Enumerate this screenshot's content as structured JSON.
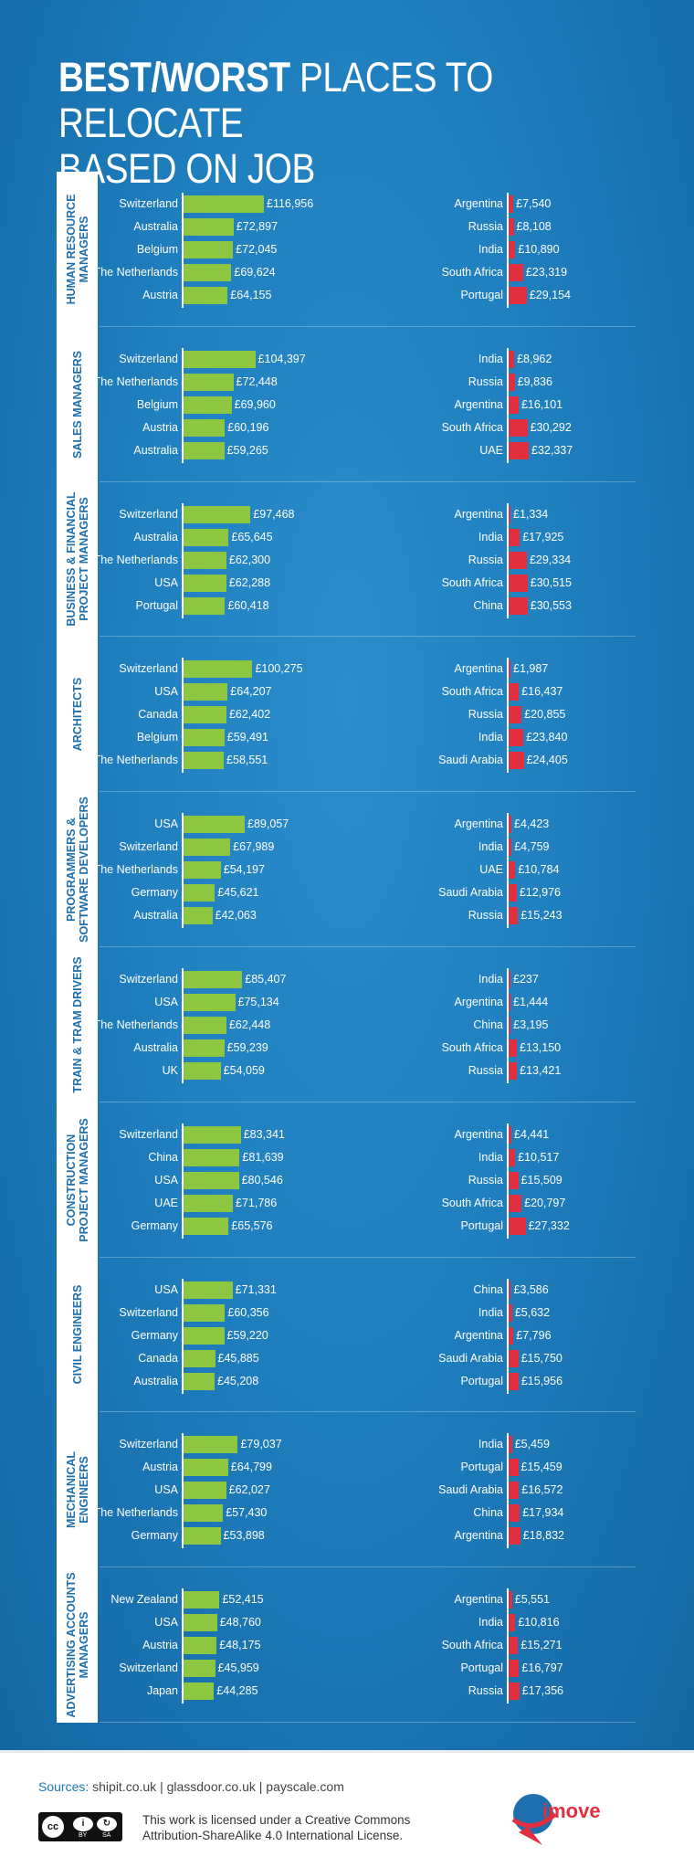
{
  "title": {
    "bold": "BEST/WORST",
    "rest": "PLACES TO RELOCATE",
    "line2": "BASED ON JOB"
  },
  "colors": {
    "best_bar": "#8dc641",
    "worst_bar": "#e12f3f",
    "background": "#1f7fbf"
  },
  "chart_data": {
    "type": "bar",
    "orientation": "horizontal",
    "value_unit": "£",
    "sections": [
      {
        "category": "Human Resource Managers",
        "best": [
          {
            "country": "Switzerland",
            "value": 116956,
            "label": "£116,956"
          },
          {
            "country": "Australia",
            "value": 72897,
            "label": "£72,897"
          },
          {
            "country": "Belgium",
            "value": 72045,
            "label": "£72,045"
          },
          {
            "country": "The Netherlands",
            "value": 69624,
            "label": "£69,624"
          },
          {
            "country": "Austria",
            "value": 64155,
            "label": "£64,155"
          }
        ],
        "worst": [
          {
            "country": "Argentina",
            "value": 7540,
            "label": "£7,540"
          },
          {
            "country": "Russia",
            "value": 8108,
            "label": "£8,108"
          },
          {
            "country": "India",
            "value": 10890,
            "label": "£10,890"
          },
          {
            "country": "South Africa",
            "value": 23319,
            "label": "£23,319"
          },
          {
            "country": "Portugal",
            "value": 29154,
            "label": "£29,154"
          }
        ]
      },
      {
        "category": "Sales Managers",
        "best": [
          {
            "country": "Switzerland",
            "value": 104397,
            "label": "£104,397"
          },
          {
            "country": "The Netherlands",
            "value": 72448,
            "label": "£72,448"
          },
          {
            "country": "Belgium",
            "value": 69960,
            "label": "£69,960"
          },
          {
            "country": "Austria",
            "value": 60196,
            "label": "£60,196"
          },
          {
            "country": "Australia",
            "value": 59265,
            "label": "£59,265"
          }
        ],
        "worst": [
          {
            "country": "India",
            "value": 8962,
            "label": "£8,962"
          },
          {
            "country": "Russia",
            "value": 9836,
            "label": "£9,836"
          },
          {
            "country": "Argentina",
            "value": 16101,
            "label": "£16,101"
          },
          {
            "country": "South Africa",
            "value": 30292,
            "label": "£30,292"
          },
          {
            "country": "UAE",
            "value": 32337,
            "label": "£32,337"
          }
        ]
      },
      {
        "category": "Business & Financial Project Managers",
        "best": [
          {
            "country": "Switzerland",
            "value": 97468,
            "label": "£97,468"
          },
          {
            "country": "Australia",
            "value": 65645,
            "label": "£65,645"
          },
          {
            "country": "The Netherlands",
            "value": 62300,
            "label": "£62,300"
          },
          {
            "country": "USA",
            "value": 62288,
            "label": "£62,288"
          },
          {
            "country": "Portugal",
            "value": 60418,
            "label": "£60,418"
          }
        ],
        "worst": [
          {
            "country": "Argentina",
            "value": 1334,
            "label": "£1,334"
          },
          {
            "country": "India",
            "value": 17925,
            "label": "£17,925"
          },
          {
            "country": "Russia",
            "value": 29334,
            "label": "£29,334"
          },
          {
            "country": "South Africa",
            "value": 30515,
            "label": "£30,515"
          },
          {
            "country": "China",
            "value": 30553,
            "label": "£30,553"
          }
        ]
      },
      {
        "category": "Architects",
        "best": [
          {
            "country": "Switzerland",
            "value": 100275,
            "label": "£100,275"
          },
          {
            "country": "USA",
            "value": 64207,
            "label": "£64,207"
          },
          {
            "country": "Canada",
            "value": 62402,
            "label": "£62,402"
          },
          {
            "country": "Belgium",
            "value": 59491,
            "label": "£59,491"
          },
          {
            "country": "The Netherlands",
            "value": 58551,
            "label": "£58,551"
          }
        ],
        "worst": [
          {
            "country": "Argentina",
            "value": 1987,
            "label": "£1,987"
          },
          {
            "country": "South Africa",
            "value": 16437,
            "label": "£16,437"
          },
          {
            "country": "Russia",
            "value": 20855,
            "label": "£20,855"
          },
          {
            "country": "India",
            "value": 23840,
            "label": "£23,840"
          },
          {
            "country": "Saudi Arabia",
            "value": 24405,
            "label": "£24,405"
          }
        ]
      },
      {
        "category": "Programmers & Software Developers",
        "best": [
          {
            "country": "USA",
            "value": 89057,
            "label": "£89,057"
          },
          {
            "country": "Switzerland",
            "value": 67989,
            "label": "£67,989"
          },
          {
            "country": "The Netherlands",
            "value": 54197,
            "label": "£54,197"
          },
          {
            "country": "Germany",
            "value": 45621,
            "label": "£45,621"
          },
          {
            "country": "Australia",
            "value": 42063,
            "label": "£42,063"
          }
        ],
        "worst": [
          {
            "country": "Argentina",
            "value": 4423,
            "label": "£4,423"
          },
          {
            "country": "India",
            "value": 4759,
            "label": "£4,759"
          },
          {
            "country": "UAE",
            "value": 10784,
            "label": "£10,784"
          },
          {
            "country": "Saudi Arabia",
            "value": 12976,
            "label": "£12,976"
          },
          {
            "country": "Russia",
            "value": 15243,
            "label": "£15,243"
          }
        ]
      },
      {
        "category": "Train & Tram Drivers",
        "best": [
          {
            "country": "Switzerland",
            "value": 85407,
            "label": "£85,407"
          },
          {
            "country": "USA",
            "value": 75134,
            "label": "£75,134"
          },
          {
            "country": "The Netherlands",
            "value": 62448,
            "label": "£62,448"
          },
          {
            "country": "Australia",
            "value": 59239,
            "label": "£59,239"
          },
          {
            "country": "UK",
            "value": 54059,
            "label": "£54,059"
          }
        ],
        "worst": [
          {
            "country": "India",
            "value": 237,
            "label": "£237"
          },
          {
            "country": "Argentina",
            "value": 1444,
            "label": "£1,444"
          },
          {
            "country": "China",
            "value": 3195,
            "label": "£3,195"
          },
          {
            "country": "South Africa",
            "value": 13150,
            "label": "£13,150"
          },
          {
            "country": "Russia",
            "value": 13421,
            "label": "£13,421"
          }
        ]
      },
      {
        "category": "Construction Project Managers",
        "best": [
          {
            "country": "Switzerland",
            "value": 83341,
            "label": "£83,341"
          },
          {
            "country": "China",
            "value": 81639,
            "label": "£81,639"
          },
          {
            "country": "USA",
            "value": 80546,
            "label": "£80,546"
          },
          {
            "country": "UAE",
            "value": 71786,
            "label": "£71,786"
          },
          {
            "country": "Germany",
            "value": 65576,
            "label": "£65,576"
          }
        ],
        "worst": [
          {
            "country": "Argentina",
            "value": 4441,
            "label": "£4,441"
          },
          {
            "country": "India",
            "value": 10517,
            "label": "£10,517"
          },
          {
            "country": "Russia",
            "value": 15509,
            "label": "£15,509"
          },
          {
            "country": "South Africa",
            "value": 20797,
            "label": "£20,797"
          },
          {
            "country": "Portugal",
            "value": 27332,
            "label": "£27,332"
          }
        ]
      },
      {
        "category": "Civil Engineers",
        "best": [
          {
            "country": "USA",
            "value": 71331,
            "label": "£71,331"
          },
          {
            "country": "Switzerland",
            "value": 60356,
            "label": "£60,356"
          },
          {
            "country": "Germany",
            "value": 59220,
            "label": "£59,220"
          },
          {
            "country": "Canada",
            "value": 45885,
            "label": "£45,885"
          },
          {
            "country": "Australia",
            "value": 45208,
            "label": "£45,208"
          }
        ],
        "worst": [
          {
            "country": "China",
            "value": 3586,
            "label": "£3,586"
          },
          {
            "country": "India",
            "value": 5632,
            "label": "£5,632"
          },
          {
            "country": "Argentina",
            "value": 7796,
            "label": "£7,796"
          },
          {
            "country": "Saudi Arabia",
            "value": 15750,
            "label": "£15,750"
          },
          {
            "country": "Portugal",
            "value": 15956,
            "label": "£15,956"
          }
        ]
      },
      {
        "category": "Mechanical Engineers",
        "best": [
          {
            "country": "Switzerland",
            "value": 79037,
            "label": "£79,037"
          },
          {
            "country": "Austria",
            "value": 64799,
            "label": "£64,799"
          },
          {
            "country": "USA",
            "value": 62027,
            "label": "£62,027"
          },
          {
            "country": "The Netherlands",
            "value": 57430,
            "label": "£57,430"
          },
          {
            "country": "Germany",
            "value": 53898,
            "label": "£53,898"
          }
        ],
        "worst": [
          {
            "country": "India",
            "value": 5459,
            "label": "£5,459"
          },
          {
            "country": "Portugal",
            "value": 15459,
            "label": "£15,459"
          },
          {
            "country": "Saudi Arabia",
            "value": 16572,
            "label": "£16,572"
          },
          {
            "country": "China",
            "value": 17934,
            "label": "£17,934"
          },
          {
            "country": "Argentina",
            "value": 18832,
            "label": "£18,832"
          }
        ]
      },
      {
        "category": "Advertising Accounts Managers",
        "best": [
          {
            "country": "New Zealand",
            "value": 52415,
            "label": "£52,415"
          },
          {
            "country": "USA",
            "value": 48760,
            "label": "£48,760"
          },
          {
            "country": "Austria",
            "value": 48175,
            "label": "£48,175"
          },
          {
            "country": "Switzerland",
            "value": 45959,
            "label": "£45,959"
          },
          {
            "country": "Japan",
            "value": 44285,
            "label": "£44,285"
          }
        ],
        "worst": [
          {
            "country": "Argentina",
            "value": 5551,
            "label": "£5,551"
          },
          {
            "country": "India",
            "value": 10816,
            "label": "£10,816"
          },
          {
            "country": "South Africa",
            "value": 15271,
            "label": "£15,271"
          },
          {
            "country": "Portugal",
            "value": 16797,
            "label": "£16,797"
          },
          {
            "country": "Russia",
            "value": 17356,
            "label": "£17,356"
          }
        ]
      }
    ]
  },
  "footer": {
    "sources_label": "Sources:",
    "sources_text": "shipit.co.uk | glassdoor.co.uk | payscale.com",
    "license_line1": "This work is licensed under a Creative Commons",
    "license_line2": "Attribution-ShareAlike 4.0 International License.",
    "cc_badge": {
      "c": "cc",
      "by": "BY",
      "sa": "SA"
    },
    "logo_text": "imove",
    "logo_icon": "globe-plane-logo"
  }
}
